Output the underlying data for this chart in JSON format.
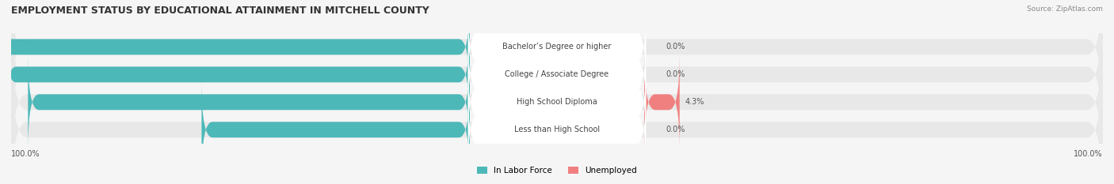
{
  "title": "EMPLOYMENT STATUS BY EDUCATIONAL ATTAINMENT IN MITCHELL COUNTY",
  "source": "Source: ZipAtlas.com",
  "categories": [
    "Less than High School",
    "High School Diploma",
    "College / Associate Degree",
    "Bachelor’s Degree or higher"
  ],
  "in_labor_force": [
    49.1,
    80.9,
    85.1,
    88.4
  ],
  "unemployed": [
    0.0,
    4.3,
    0.0,
    0.0
  ],
  "color_labor": "#4db8b8",
  "color_unemployed": "#f08080",
  "color_bg_bar": "#f0f0f0",
  "color_bg_label": "#ffffff",
  "axis_label_left": "100.0%",
  "axis_label_right": "100.0%",
  "legend_labor": "In Labor Force",
  "legend_unemployed": "Unemployed",
  "title_fontsize": 9,
  "label_fontsize": 7.5,
  "bar_height": 0.55,
  "fig_width": 14.06,
  "fig_height": 2.33
}
